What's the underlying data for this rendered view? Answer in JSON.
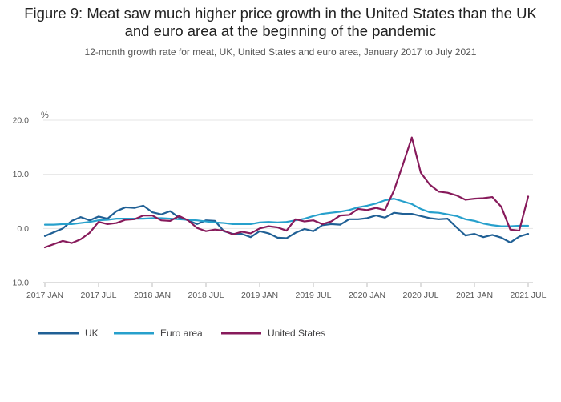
{
  "header": {
    "title": "Figure 9: Meat saw much higher price growth in the United States than the UK and euro area at the beginning of the pandemic",
    "subtitle": "12-month growth rate for meat, UK, United States and euro area, January 2017 to July 2021"
  },
  "chart_data": {
    "type": "line",
    "ylabel": "%",
    "xlabel": "",
    "ylim": [
      -10,
      20
    ],
    "yticks": [
      "20.0",
      "10.0",
      "0.0",
      "-10.0"
    ],
    "ytick_values": [
      20,
      10,
      0,
      -10
    ],
    "xticks": [
      "2017 JAN",
      "2017 JUL",
      "2018 JAN",
      "2018 JUL",
      "2019 JAN",
      "2019 JUL",
      "2020 JAN",
      "2020 JUL",
      "2021 JAN",
      "2021 JUL"
    ],
    "xtick_month_index": [
      0,
      6,
      12,
      18,
      24,
      30,
      36,
      42,
      48,
      54
    ],
    "x_start": "2017 JAN",
    "x_end": "2021 JUL",
    "grid": true,
    "legend_position": "bottom-left",
    "series": [
      {
        "name": "UK",
        "color": "#206095",
        "values": [
          -1.4,
          -0.7,
          0.0,
          1.4,
          2.1,
          1.5,
          2.2,
          1.8,
          3.2,
          3.9,
          3.8,
          4.2,
          3.0,
          2.6,
          3.2,
          2.0,
          1.5,
          0.8,
          1.5,
          1.4,
          -0.5,
          -1.0,
          -1.0,
          -1.6,
          -0.5,
          -0.9,
          -1.7,
          -1.8,
          -0.8,
          -0.1,
          -0.5,
          0.6,
          0.8,
          0.7,
          1.7,
          1.7,
          1.9,
          2.4,
          2.0,
          2.9,
          2.7,
          2.7,
          2.3,
          1.9,
          1.7,
          1.8,
          0.2,
          -1.3,
          -1.0,
          -1.6,
          -1.2,
          -1.7,
          -2.6,
          -1.5,
          -1.0
        ]
      },
      {
        "name": "Euro area",
        "color": "#27a0cc",
        "values": [
          0.7,
          0.7,
          0.8,
          0.8,
          1.0,
          1.2,
          1.5,
          1.6,
          1.8,
          1.8,
          1.8,
          1.8,
          1.9,
          1.9,
          1.8,
          1.7,
          1.6,
          1.5,
          1.3,
          1.1,
          1.0,
          0.8,
          0.8,
          0.8,
          1.1,
          1.2,
          1.1,
          1.2,
          1.5,
          1.8,
          2.3,
          2.7,
          2.9,
          3.1,
          3.4,
          3.9,
          4.2,
          4.6,
          5.2,
          5.5,
          5.0,
          4.5,
          3.6,
          3.0,
          2.9,
          2.6,
          2.3,
          1.7,
          1.4,
          0.9,
          0.6,
          0.4,
          0.4,
          0.5,
          0.5
        ]
      },
      {
        "name": "United States",
        "color": "#871a5b",
        "values": [
          -3.5,
          -2.9,
          -2.3,
          -2.7,
          -2.0,
          -0.8,
          1.2,
          0.8,
          1.0,
          1.6,
          1.7,
          2.4,
          2.4,
          1.5,
          1.4,
          2.3,
          1.5,
          0.1,
          -0.5,
          -0.2,
          -0.4,
          -1.1,
          -0.6,
          -0.9,
          0.0,
          0.4,
          0.2,
          -0.4,
          1.7,
          1.3,
          1.5,
          0.8,
          1.3,
          2.4,
          2.5,
          3.6,
          3.4,
          3.8,
          3.4,
          7.0,
          11.8,
          16.8,
          10.3,
          8.1,
          6.8,
          6.6,
          6.1,
          5.3,
          5.5,
          5.6,
          5.8,
          4.0,
          -0.2,
          -0.4,
          5.9
        ]
      }
    ]
  }
}
